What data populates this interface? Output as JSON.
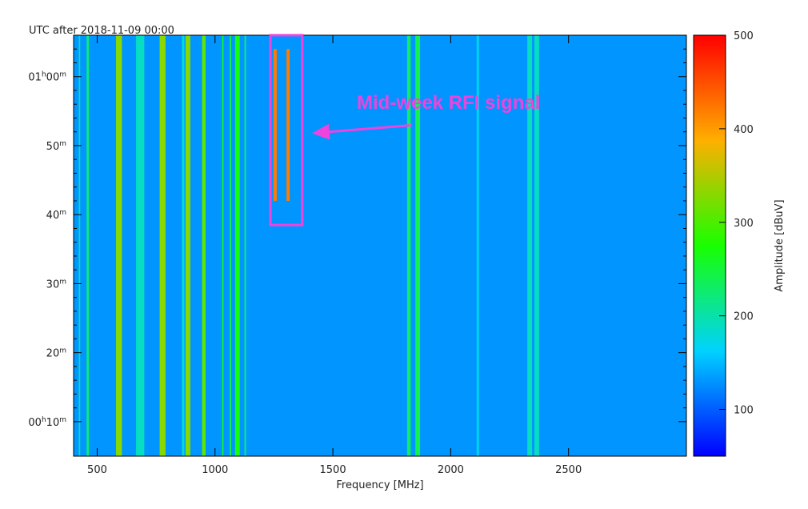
{
  "chart_data": {
    "type": "heatmap",
    "title": "UTC after 2018-11-09 00:00",
    "xlabel": "Frequency [MHz]",
    "ylabel": "",
    "xlim": [
      400,
      3000
    ],
    "ylim_minutes": [
      5,
      66
    ],
    "x_ticks": [
      {
        "value": 500,
        "label": "500"
      },
      {
        "value": 1000,
        "label": "1000"
      },
      {
        "value": 1500,
        "label": "1500"
      },
      {
        "value": 2000,
        "label": "2000"
      },
      {
        "value": 2500,
        "label": "2500"
      }
    ],
    "y_ticks": [
      {
        "minutes": 10,
        "h": "00",
        "m": "10"
      },
      {
        "minutes": 20,
        "h": "",
        "m": "20"
      },
      {
        "minutes": 30,
        "h": "",
        "m": "30"
      },
      {
        "minutes": 40,
        "h": "",
        "m": "40"
      },
      {
        "minutes": 50,
        "h": "",
        "m": "50"
      },
      {
        "minutes": 60,
        "h": "01",
        "m": "00"
      }
    ],
    "colorbar": {
      "label": "Amplitude [dBuV]",
      "min": 50,
      "max": 500,
      "ticks": [
        100,
        200,
        300,
        400,
        500
      ],
      "colormap": "rainbow"
    },
    "background_level": 130,
    "bands": [
      {
        "f1": 422,
        "f2": 428,
        "level": 200
      },
      {
        "f1": 455,
        "f2": 465,
        "level": 220
      },
      {
        "f1": 580,
        "f2": 605,
        "level": 330
      },
      {
        "f1": 665,
        "f2": 700,
        "level": 190
      },
      {
        "f1": 765,
        "f2": 790,
        "level": 330
      },
      {
        "f1": 860,
        "f2": 870,
        "level": 180
      },
      {
        "f1": 875,
        "f2": 895,
        "level": 330
      },
      {
        "f1": 945,
        "f2": 960,
        "level": 310
      },
      {
        "f1": 1030,
        "f2": 1036,
        "level": 260
      },
      {
        "f1": 1062,
        "f2": 1068,
        "level": 250
      },
      {
        "f1": 1085,
        "f2": 1105,
        "level": 270
      },
      {
        "f1": 1125,
        "f2": 1132,
        "level": 220
      },
      {
        "f1": 1815,
        "f2": 1830,
        "level": 230
      },
      {
        "f1": 1850,
        "f2": 1870,
        "level": 240
      },
      {
        "f1": 2110,
        "f2": 2120,
        "level": 170
      },
      {
        "f1": 2325,
        "f2": 2345,
        "level": 190
      },
      {
        "f1": 2355,
        "f2": 2375,
        "level": 190
      }
    ],
    "rfi_signals": [
      {
        "f": 1255,
        "t1": 42,
        "t2": 64,
        "level": 420
      },
      {
        "f": 1310,
        "t1": 42,
        "t2": 64,
        "level": 420
      }
    ],
    "annotations": [
      {
        "text": "Mid-week RFI signal",
        "box_f": [
          1235,
          1370
        ],
        "box_t": [
          38.5,
          66
        ],
        "color": "#ee44dd"
      }
    ]
  }
}
